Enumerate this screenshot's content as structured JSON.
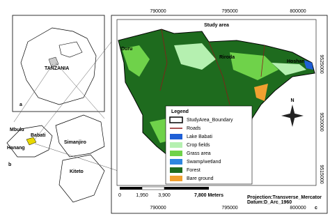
{
  "panel_a": {
    "letter": "a",
    "country": "TANZANIA"
  },
  "panel_b": {
    "letter": "b",
    "districts": [
      "Mbulu",
      "Babati",
      "Hanang",
      "Simanjiro",
      "Kiteto"
    ]
  },
  "panel_c": {
    "letter": "c",
    "title": "Study area",
    "places": [
      "Duru",
      "Riroda",
      "Hoshan"
    ],
    "x_coords": [
      "790000",
      "795000",
      "800000"
    ],
    "y_coords": [
      "9525000",
      "9520000",
      "9515000"
    ],
    "north": "N",
    "legend": {
      "title": "Legend",
      "items": [
        {
          "label": "StudyArea_Boundary",
          "color": "#000000",
          "symbol": "outline"
        },
        {
          "label": "Roads",
          "color": "#8b1a1a",
          "symbol": "line"
        },
        {
          "label": "Lake Babati",
          "color": "#1f5fd6",
          "symbol": "fill"
        },
        {
          "label": "Crop fields",
          "color": "#b5f0b0",
          "symbol": "fill"
        },
        {
          "label": "Grass area",
          "color": "#6fd24a",
          "symbol": "fill"
        },
        {
          "label": "Swamp/wetland",
          "color": "#2e86e0",
          "symbol": "fill"
        },
        {
          "label": "Forest",
          "color": "#1e6b1e",
          "symbol": "fill"
        },
        {
          "label": "Bare ground",
          "color": "#f0a030",
          "symbol": "fill"
        }
      ]
    },
    "scale_labels": [
      "0",
      "1,950",
      "3,900",
      "7,800 Meters"
    ],
    "projection": "Projection:Transverse_Mercator",
    "datum": "Datum:D_Arc_1960"
  }
}
